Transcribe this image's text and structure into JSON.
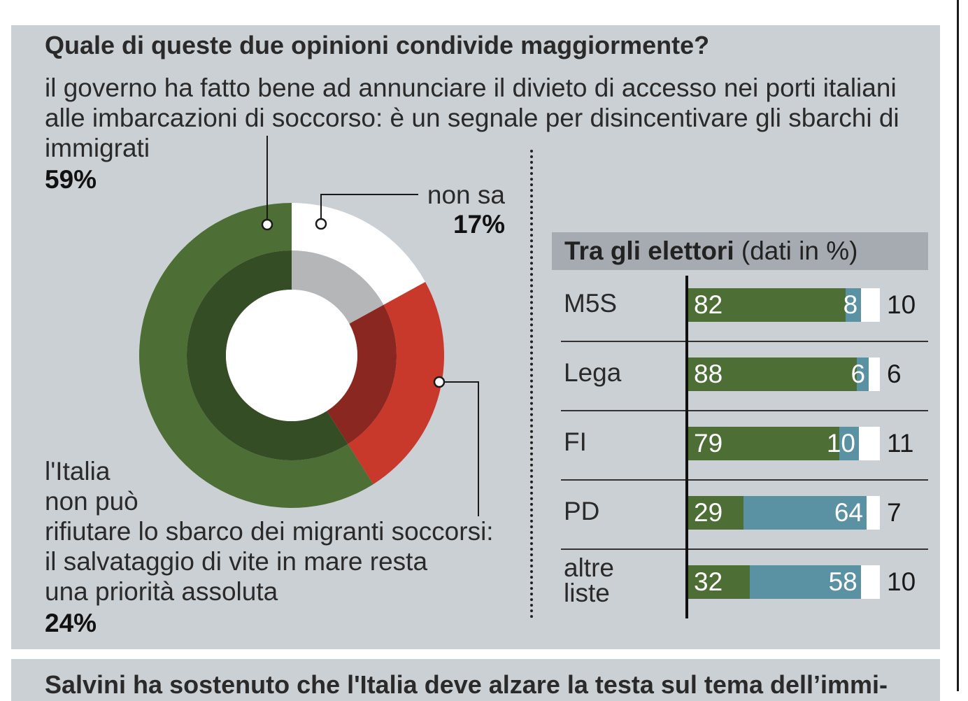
{
  "colors": {
    "yes": "#4d6e35",
    "yes_inner": "#354d25",
    "no": "#c8392b",
    "no_inner": "#8a2720",
    "nonsa": "#ffffff",
    "nonsa_inner": "#b5b6b8",
    "blue": "#5a92a3",
    "white": "#ffffff"
  },
  "header": {
    "title": "Quale di queste due opinioni condivide maggiormente?"
  },
  "donut_texts": {
    "opinion1_text": "il governo ha fatto bene ad annunciare il divieto di accesso nei porti italiani alle imbarcazioni di soccorso: è un segnale per disincentivare gli sbarchi di immigrati",
    "opinion1_pct": "59%",
    "nonsa_label": "non sa",
    "nonsa_pct": "17%",
    "opinion2_line1": "l'Italia",
    "opinion2_line2": "non può",
    "opinion2_line3": "rifiutare lo sbarco dei migranti soccorsi:",
    "opinion2_line4": "il salvataggio di vite in mare resta",
    "opinion2_line5": "una priorità assoluta",
    "opinion2_pct": "24%"
  },
  "table": {
    "title_bold": "Tra gli elettori",
    "title_rest": " (dati in %)"
  },
  "next_section": {
    "title": "Salvini ha sostenuto che l'Italia deve alzare la testa sul tema dell’immi-"
  },
  "chart_data": [
    {
      "type": "pie",
      "subtype": "donut",
      "title": "Quale di queste due opinioni condivide maggiormente?",
      "slices": [
        {
          "label": "il governo ha fatto bene ad annunciare il divieto di accesso nei porti italiani alle imbarcazioni di soccorso: è un segnale per disincentivare gli sbarchi di immigrati",
          "value": 59
        },
        {
          "label": "l'Italia non può rifiutare lo sbarco dei migranti soccorsi: il salvataggio di vite in mare resta una priorità assoluta",
          "value": 24
        },
        {
          "label": "non sa",
          "value": 17
        }
      ]
    },
    {
      "type": "bar",
      "orientation": "horizontal",
      "stacked": true,
      "title": "Tra gli elettori (dati in %)",
      "categories": [
        "M5S",
        "Lega",
        "FI",
        "PD",
        "altre liste"
      ],
      "category_lines": [
        [
          "M5S"
        ],
        [
          "Lega"
        ],
        [
          "FI"
        ],
        [
          "PD"
        ],
        [
          "altre",
          "liste"
        ]
      ],
      "series": [
        {
          "name": "il governo ha fatto bene",
          "values": [
            82,
            88,
            79,
            29,
            32
          ]
        },
        {
          "name": "l'Italia non può rifiutare lo sbarco",
          "values": [
            8,
            6,
            10,
            64,
            58
          ]
        },
        {
          "name": "non sa",
          "values": [
            10,
            6,
            11,
            7,
            10
          ]
        }
      ],
      "xlim": [
        0,
        100
      ]
    }
  ]
}
